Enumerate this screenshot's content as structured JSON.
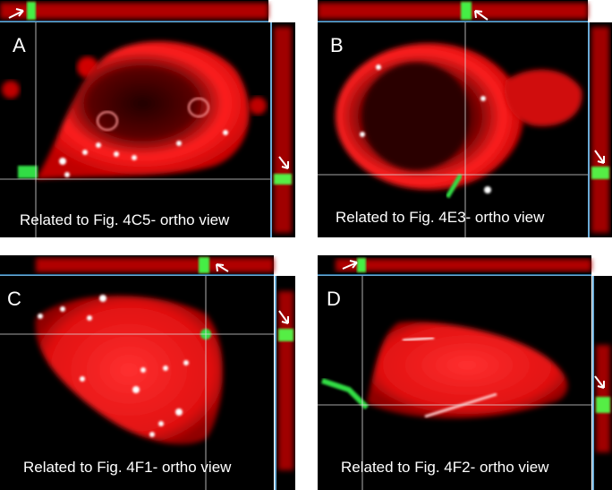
{
  "figure": {
    "panels": [
      {
        "label": "A",
        "caption": "Related to Fig. 4C5- ortho view"
      },
      {
        "label": "B",
        "caption": "Related to Fig. 4E3- ortho view"
      },
      {
        "label": "C",
        "caption": "Related to Fig. 4F1- ortho view"
      },
      {
        "label": "D",
        "caption": "Related to Fig. 4F2- ortho view"
      }
    ],
    "colors": {
      "background": "#000000",
      "cell_red": "#ff1a1a",
      "marker_green": "#33dd44",
      "puncta_white": "#ffffff",
      "ortho_frame": "#3a8fc9",
      "crosshair": "#dddddd"
    }
  }
}
